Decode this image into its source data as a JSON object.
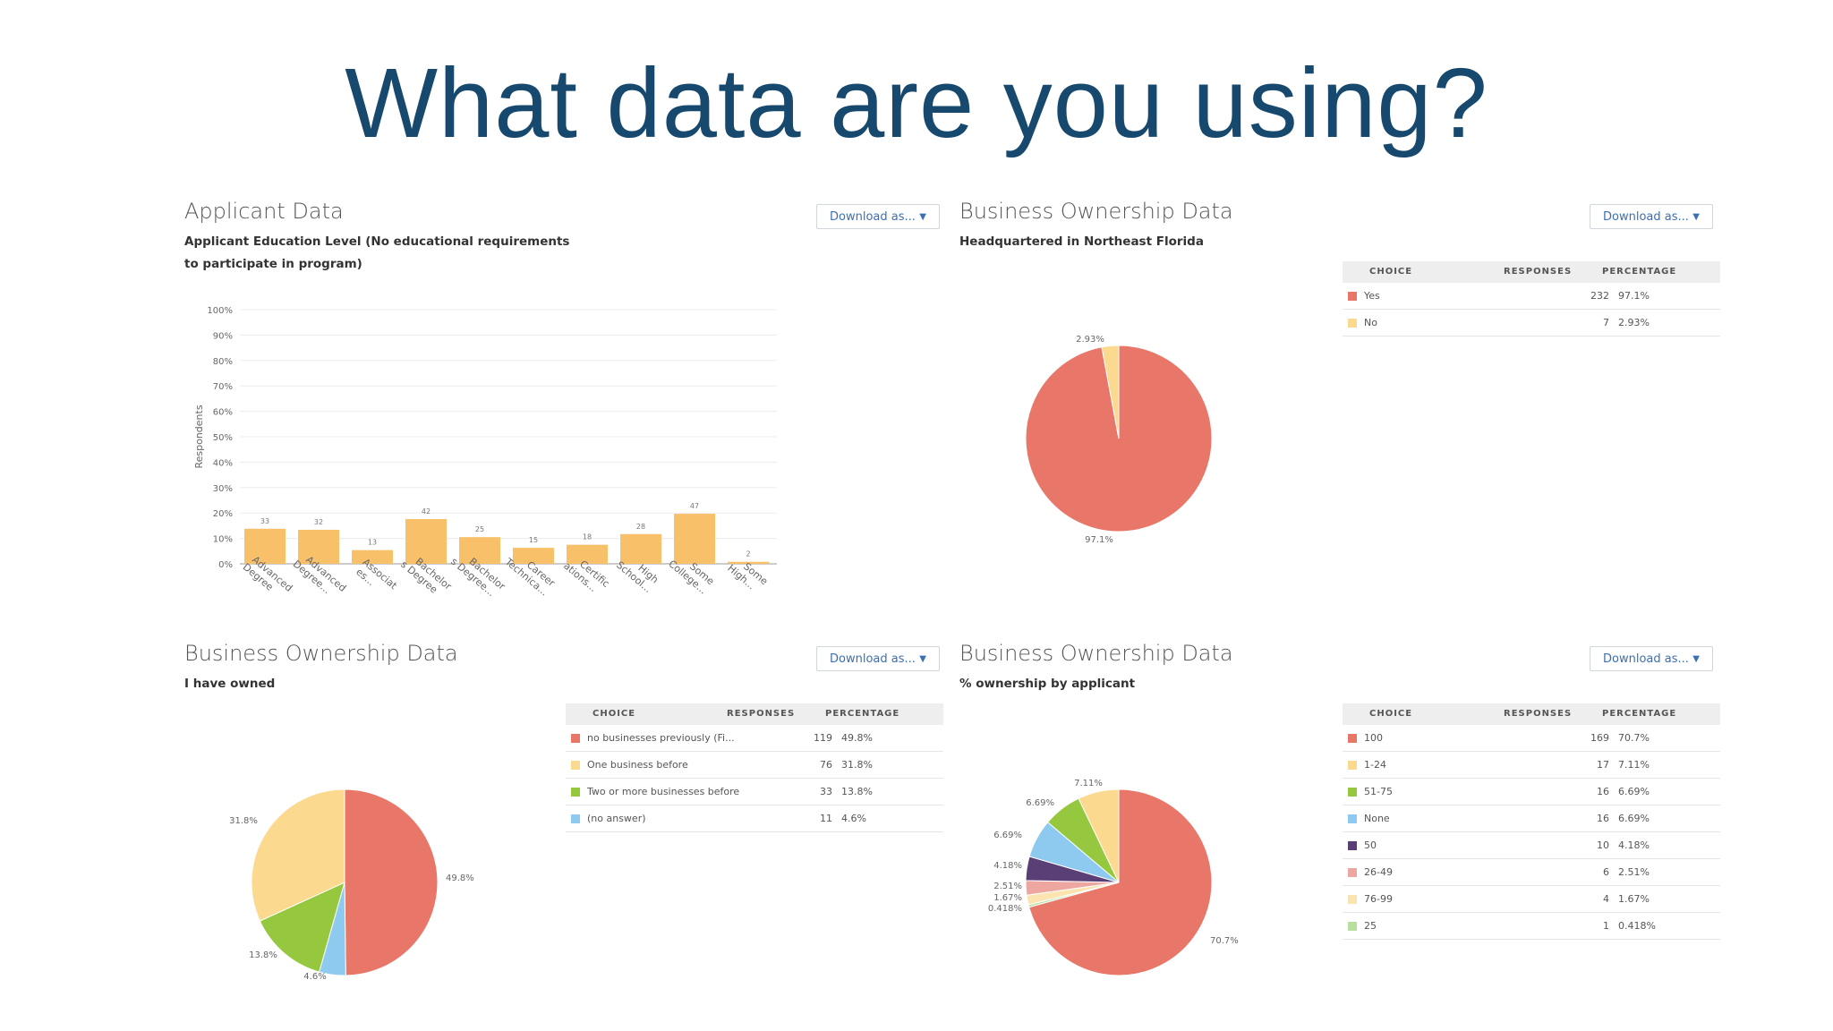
{
  "slide": {
    "title": "What data are you using?"
  },
  "common": {
    "download_label": "Download as...",
    "col_choice": "CHOICE",
    "col_responses": "RESPONSES",
    "col_percentage": "PERCENTAGE"
  },
  "panels": [
    {
      "title": "Applicant Data",
      "subtitle_lines": [
        "Applicant Education Level (No educational requirements",
        "to participate in program)"
      ]
    },
    {
      "title": "Business Ownership Data",
      "subtitle_lines": [
        "Headquartered in Northeast Florida"
      ]
    },
    {
      "title": "Business Ownership Data",
      "subtitle_lines": [
        "I have owned"
      ]
    },
    {
      "title": "Business Ownership Data",
      "subtitle_lines": [
        "% ownership by applicant"
      ]
    }
  ],
  "chart_data": [
    {
      "type": "bar",
      "ylabel": "Respondents",
      "ylim": [
        0,
        100
      ],
      "yticks": [
        "0%",
        "10%",
        "20%",
        "30%",
        "40%",
        "50%",
        "60%",
        "70%",
        "80%",
        "90%",
        "100%"
      ],
      "categories": [
        "Advanced Degree",
        "Advanced Degree...",
        "Associat es...",
        "Bachelor s Degree",
        "Bachelor s Degree...",
        "Career Technica...",
        "Certific ations...",
        "High School...",
        "Some College...",
        "Some High..."
      ],
      "values_pct": [
        13.8,
        13.4,
        5.4,
        17.6,
        10.5,
        6.3,
        7.5,
        11.7,
        19.7,
        0.8
      ],
      "data_labels": [
        "33",
        "32",
        "13",
        "42",
        "25",
        "15",
        "18",
        "28",
        "47",
        "2"
      ],
      "color": "#f9c06a"
    },
    {
      "type": "pie",
      "slices": [
        {
          "choice": "Yes",
          "responses": "232",
          "percentage": "97.1%",
          "value": 97.1,
          "color": "#e8776a",
          "label": "97.1%"
        },
        {
          "choice": "No",
          "responses": "7",
          "percentage": "2.93%",
          "value": 2.93,
          "color": "#fbd98f",
          "label": "2.93%"
        }
      ]
    },
    {
      "type": "pie",
      "slices": [
        {
          "choice": "no businesses previously (Fi...",
          "responses": "119",
          "percentage": "49.8%",
          "value": 49.8,
          "color": "#e8776a",
          "label": "49.8%"
        },
        {
          "choice": "(no answer)",
          "responses": "11",
          "percentage": "4.6%",
          "value": 4.6,
          "color": "#8ec9ef",
          "label": "4.6%"
        },
        {
          "choice": "Two or more businesses before",
          "responses": "33",
          "percentage": "13.8%",
          "value": 13.8,
          "color": "#95c83f",
          "label": "13.8%"
        },
        {
          "choice": "One business before",
          "responses": "76",
          "percentage": "31.8%",
          "value": 31.8,
          "color": "#fbd98f",
          "label": "31.8%"
        }
      ],
      "table_order": [
        0,
        3,
        2,
        1
      ]
    },
    {
      "type": "pie",
      "slices": [
        {
          "choice": "100",
          "responses": "169",
          "percentage": "70.7%",
          "value": 70.7,
          "color": "#e8776a",
          "label": "70.7%"
        },
        {
          "choice": "25",
          "responses": "1",
          "percentage": "0.418%",
          "value": 0.418,
          "color": "#b8dfa0",
          "label": "0.418%"
        },
        {
          "choice": "76-99",
          "responses": "4",
          "percentage": "1.67%",
          "value": 1.67,
          "color": "#fbe4b0",
          "label": "1.67%"
        },
        {
          "choice": "26-49",
          "responses": "6",
          "percentage": "2.51%",
          "value": 2.51,
          "color": "#eea7a0",
          "label": "2.51%"
        },
        {
          "choice": "50",
          "responses": "10",
          "percentage": "4.18%",
          "value": 4.18,
          "color": "#5a3f77",
          "label": "4.18%"
        },
        {
          "choice": "None",
          "responses": "16",
          "percentage": "6.69%",
          "value": 6.69,
          "color": "#8ec9ef",
          "label": "6.69%"
        },
        {
          "choice": "51-75",
          "responses": "16",
          "percentage": "6.69%",
          "value": 6.69,
          "color": "#95c83f",
          "label": "6.69%"
        },
        {
          "choice": "1-24",
          "responses": "17",
          "percentage": "7.11%",
          "value": 7.11,
          "color": "#fbd98f",
          "label": "7.11%"
        }
      ],
      "table_order": [
        0,
        7,
        6,
        5,
        4,
        3,
        2,
        1
      ]
    }
  ]
}
